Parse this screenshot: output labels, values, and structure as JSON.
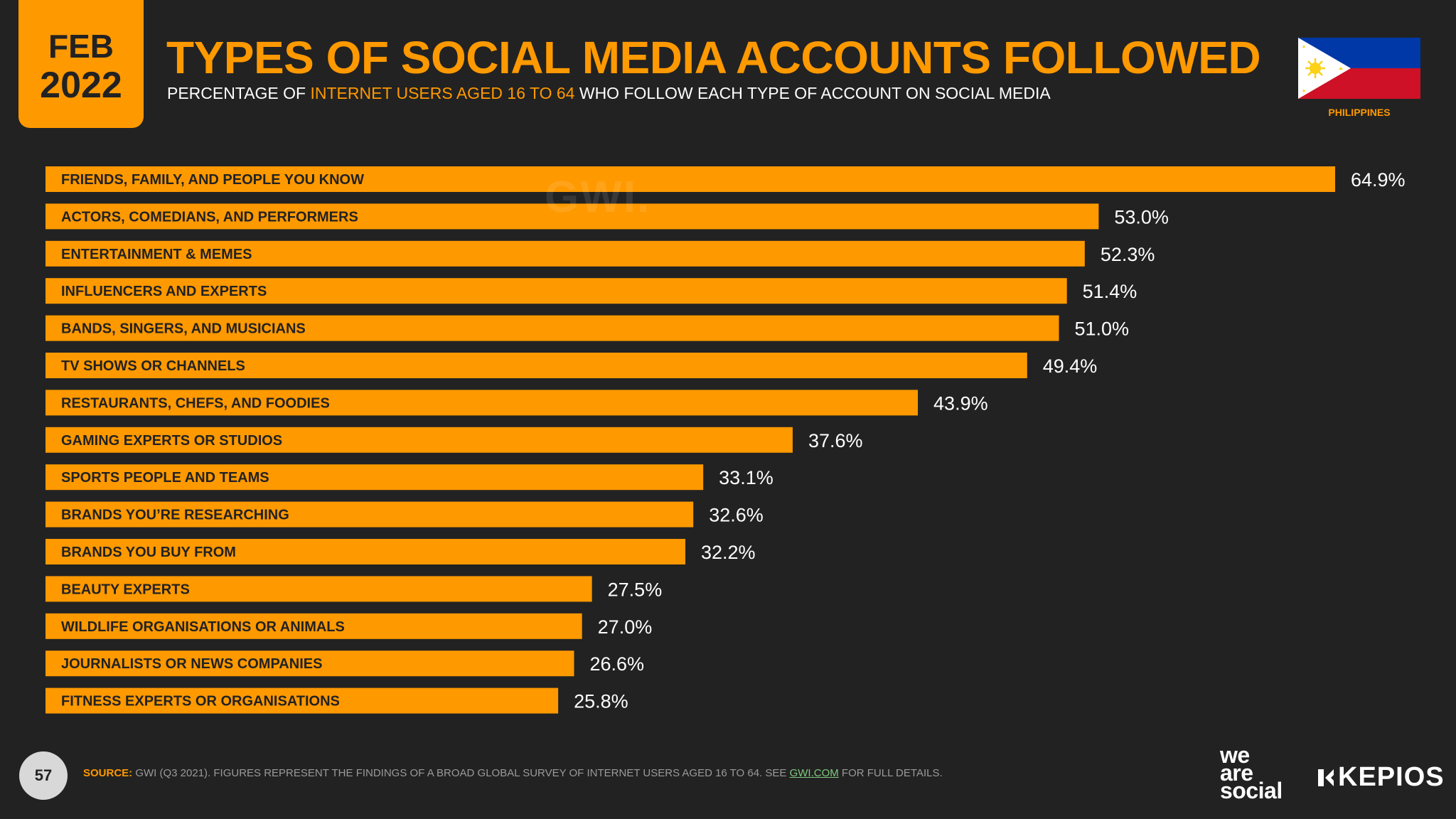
{
  "header": {
    "month": "FEB",
    "year": "2022",
    "title": "TYPES OF SOCIAL MEDIA ACCOUNTS FOLLOWED",
    "subtitle_pre": "PERCENTAGE OF ",
    "subtitle_highlight": "INTERNET USERS AGED 16 TO 64",
    "subtitle_post": " WHO FOLLOW EACH TYPE OF ACCOUNT ON SOCIAL MEDIA",
    "country": "PHILIPPINES",
    "flag_icon": "philippines-flag-icon"
  },
  "watermark": "GWI.",
  "colors": {
    "background": "#222222",
    "accent": "#ff9900",
    "bar_text": "#222222",
    "value_text": "#ffffff"
  },
  "chart_data": {
    "type": "bar",
    "orientation": "horizontal",
    "title": "TYPES OF SOCIAL MEDIA ACCOUNTS FOLLOWED",
    "unit": "%",
    "xlim": [
      0,
      64.9
    ],
    "categories": [
      "FRIENDS, FAMILY, AND PEOPLE YOU KNOW",
      "ACTORS, COMEDIANS, AND PERFORMERS",
      "ENTERTAINMENT & MEMES",
      "INFLUENCERS AND EXPERTS",
      "BANDS, SINGERS, AND MUSICIANS",
      "TV SHOWS OR CHANNELS",
      "RESTAURANTS, CHEFS, AND FOODIES",
      "GAMING EXPERTS OR STUDIOS",
      "SPORTS PEOPLE AND TEAMS",
      "BRANDS YOU’RE RESEARCHING",
      "BRANDS YOU BUY FROM",
      "BEAUTY EXPERTS",
      "WILDLIFE ORGANISATIONS OR ANIMALS",
      "JOURNALISTS OR NEWS COMPANIES",
      "FITNESS EXPERTS OR ORGANISATIONS"
    ],
    "values": [
      64.9,
      53.0,
      52.3,
      51.4,
      51.0,
      49.4,
      43.9,
      37.6,
      33.1,
      32.6,
      32.2,
      27.5,
      27.0,
      26.6,
      25.8
    ],
    "value_labels": [
      "64.9%",
      "53.0%",
      "52.3%",
      "51.4%",
      "51.0%",
      "49.4%",
      "43.9%",
      "37.6%",
      "33.1%",
      "32.6%",
      "32.2%",
      "27.5%",
      "27.0%",
      "26.6%",
      "25.8%"
    ]
  },
  "footer": {
    "page_number": "57",
    "source_label": "SOURCE:",
    "source_text": " GWI (Q3 2021). FIGURES REPRESENT THE FINDINGS OF A BROAD GLOBAL SURVEY OF INTERNET USERS AGED 16 TO 64. SEE ",
    "source_link": "GWI.COM",
    "source_tail": " FOR FULL DETAILS.",
    "brand1_line1": "we",
    "brand1_line2": "are",
    "brand1_line3": "social",
    "brand2": "KEPIOS"
  }
}
